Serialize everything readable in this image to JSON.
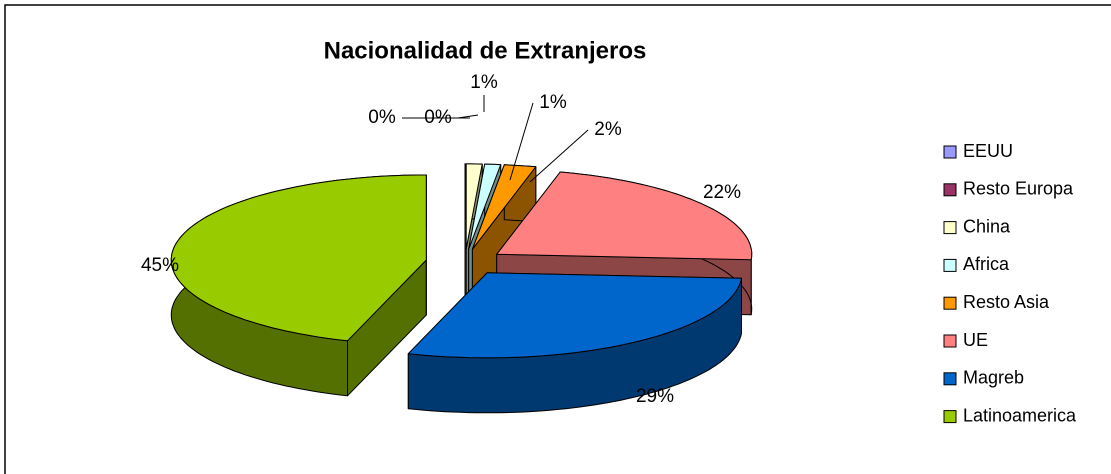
{
  "chart_data": {
    "type": "pie3d",
    "title": "Nacionalidad de Extranjeros",
    "categories": [
      "EEUU",
      "Resto Europa",
      "China",
      "Africa",
      "Resto Asia",
      "UE",
      "Magreb",
      "Latinoamerica"
    ],
    "values": [
      0,
      0,
      1,
      1,
      2,
      22,
      29,
      45
    ],
    "value_labels": [
      "0%",
      "0%",
      "1%",
      "1%",
      "2%",
      "22%",
      "29%",
      "45%"
    ],
    "colors": [
      "#9999ff",
      "#993366",
      "#ffffcc",
      "#ccffff",
      "#ff9900",
      "#ff8080",
      "#0066cc",
      "#99cc00"
    ],
    "legend": "right"
  }
}
